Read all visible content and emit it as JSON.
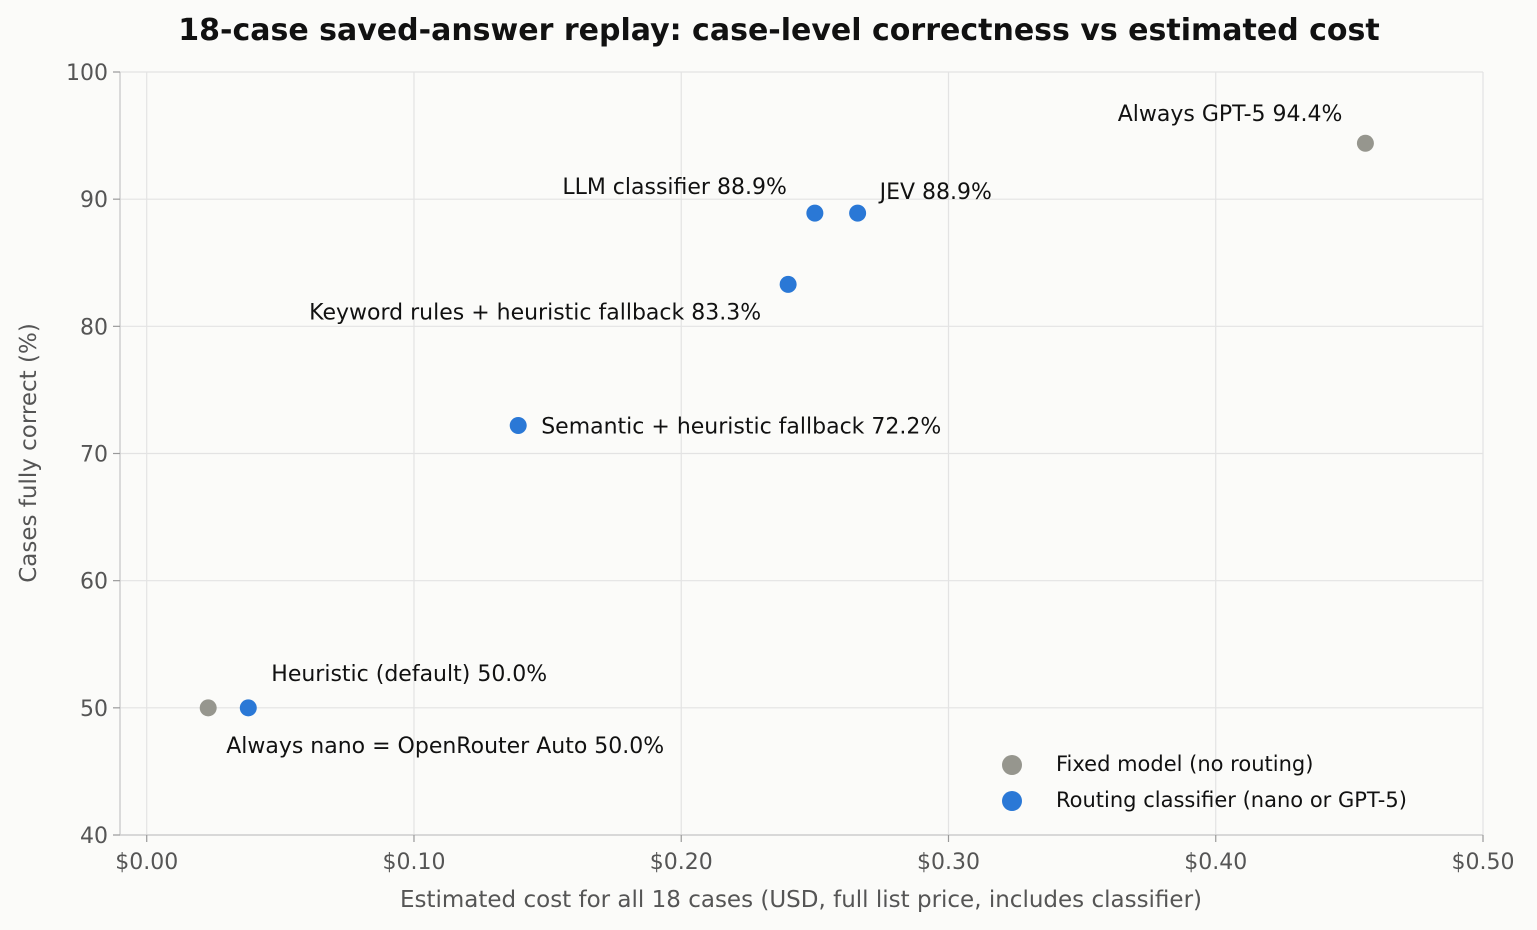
{
  "chart_data": {
    "type": "scatter",
    "title": "18-case saved-answer replay: case-level correctness vs estimated cost",
    "xlabel": "Estimated cost for all 18 cases (USD, full list price, includes classifier)",
    "ylabel": "Cases fully correct (%)",
    "xlim": [
      -0.01,
      0.5
    ],
    "ylim": [
      40,
      100
    ],
    "xticks": [
      0.0,
      0.1,
      0.2,
      0.3,
      0.4,
      0.5
    ],
    "xtick_labels": [
      "$0.00",
      "$0.10",
      "$0.20",
      "$0.30",
      "$0.40",
      "$0.50"
    ],
    "yticks": [
      40,
      50,
      60,
      70,
      80,
      90,
      100
    ],
    "ytick_labels": [
      "40",
      "50",
      "60",
      "70",
      "80",
      "90",
      "100"
    ],
    "grid": true,
    "legend_position": "bottom-right",
    "series": [
      {
        "name": "Fixed model (no routing)",
        "color": "#96968e",
        "points": [
          {
            "x": 0.023,
            "y": 50.0,
            "label": "Always nano = OpenRouter Auto  50.0%"
          },
          {
            "x": 0.456,
            "y": 94.4,
            "label": "Always GPT-5  94.4%"
          }
        ]
      },
      {
        "name": "Routing classifier (nano or GPT-5)",
        "color": "#2a78d6",
        "points": [
          {
            "x": 0.038,
            "y": 50.0,
            "label": "Heuristic (default)  50.0%"
          },
          {
            "x": 0.139,
            "y": 72.2,
            "label": "Semantic + heuristic fallback  72.2%"
          },
          {
            "x": 0.24,
            "y": 83.3,
            "label": "Keyword rules + heuristic fallback  83.3%"
          },
          {
            "x": 0.25,
            "y": 88.9,
            "label": "LLM classifier  88.9%"
          },
          {
            "x": 0.266,
            "y": 88.9,
            "label": "JEV  88.9%"
          }
        ]
      }
    ]
  }
}
